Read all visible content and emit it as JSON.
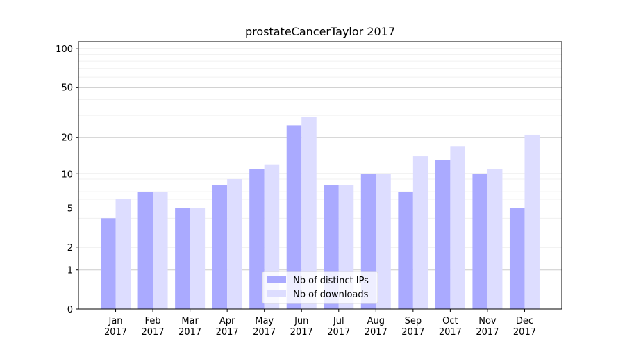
{
  "chart_data": {
    "type": "bar",
    "title": "prostateCancerTaylor 2017",
    "categories": [
      "Jan\n2017",
      "Feb\n2017",
      "Mar\n2017",
      "Apr\n2017",
      "May\n2017",
      "Jun\n2017",
      "Jul\n2017",
      "Aug\n2017",
      "Sep\n2017",
      "Oct\n2017",
      "Nov\n2017",
      "Dec\n2017"
    ],
    "series": [
      {
        "name": "Nb of distinct IPs",
        "color": "#aaaaff",
        "values": [
          4,
          7,
          5,
          8,
          11,
          25,
          8,
          10,
          7,
          13,
          10,
          5
        ]
      },
      {
        "name": "Nb of downloads",
        "color": "#ddddff",
        "values": [
          6,
          7,
          5,
          9,
          12,
          29,
          8,
          10,
          14,
          17,
          11,
          21
        ]
      }
    ],
    "yscale": "log1p",
    "ylim": [
      0,
      113.5
    ],
    "yticks": [
      0,
      1,
      2,
      5,
      10,
      20,
      50,
      100
    ],
    "minor_yticks": [
      3,
      4,
      6,
      7,
      8,
      9,
      30,
      40,
      60,
      70,
      80,
      90
    ],
    "grid": true,
    "legend": "lower center"
  }
}
